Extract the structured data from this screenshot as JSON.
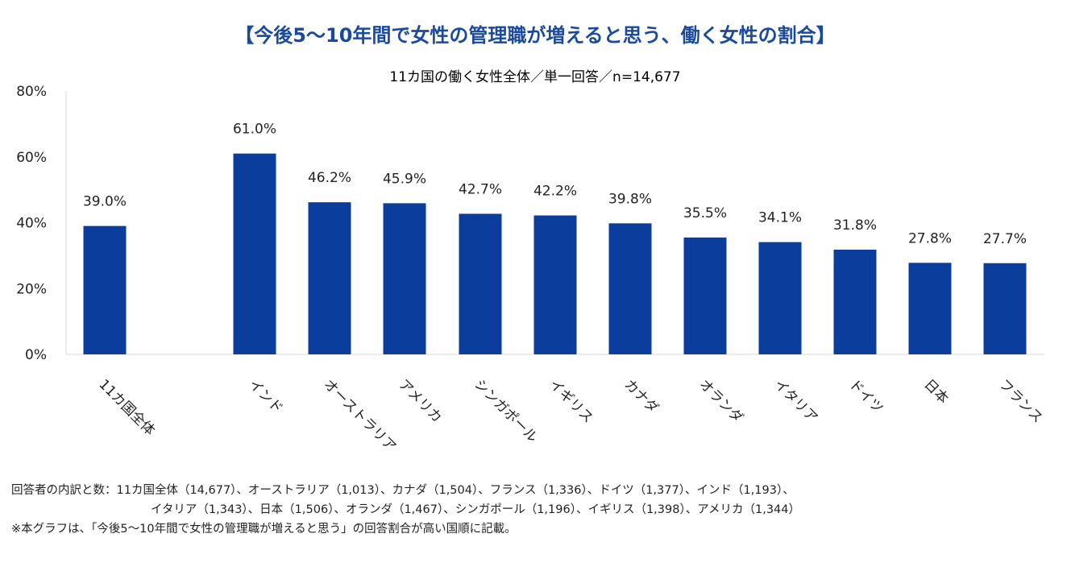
{
  "chart_data": {
    "type": "bar",
    "title": "【今後5〜10年間で女性の管理職が増えると思う、働く女性の割合】",
    "subtitle": "11カ国の働く女性全体／単一回答／n=14,677",
    "categories": [
      "11カ国全体",
      "インド",
      "オーストラリア",
      "アメリカ",
      "シンガポール",
      "イギリス",
      "カナダ",
      "オランダ",
      "イタリア",
      "ドイツ",
      "日本",
      "フランス"
    ],
    "values": [
      39.0,
      61.0,
      46.2,
      45.9,
      42.7,
      42.2,
      39.8,
      35.5,
      34.1,
      31.8,
      27.8,
      27.7
    ],
    "value_labels": [
      "39.0%",
      "61.0%",
      "46.2%",
      "45.9%",
      "42.7%",
      "42.2%",
      "39.8%",
      "35.5%",
      "34.1%",
      "31.8%",
      "27.8%",
      "27.7%"
    ],
    "ylim": [
      0,
      80
    ],
    "yticks": [
      0,
      20,
      40,
      60,
      80
    ],
    "ytick_labels": [
      "0%",
      "20%",
      "40%",
      "60%",
      "80%"
    ],
    "xlabel": "",
    "ylabel": "",
    "bar_color": "#0a3d9c",
    "title_color": "#1a4a9e"
  },
  "notes": {
    "breakdown_line1": "回答者の内訳と数：11カ国全体（14,677）、オーストラリア（1,013）、カナダ（1,504）、フランス（1,336）、ドイツ（1,377）、インド（1,193）、",
    "breakdown_line2": "イタリア（1,343）、日本（1,506）、オランダ（1,467）、シンガポール（1,196）、イギリス（1,398）、アメリカ（1,344）",
    "footnote": "※本グラフは、「今後5〜10年間で女性の管理職が増えると思う」の回答割合が高い国順に記載。"
  }
}
